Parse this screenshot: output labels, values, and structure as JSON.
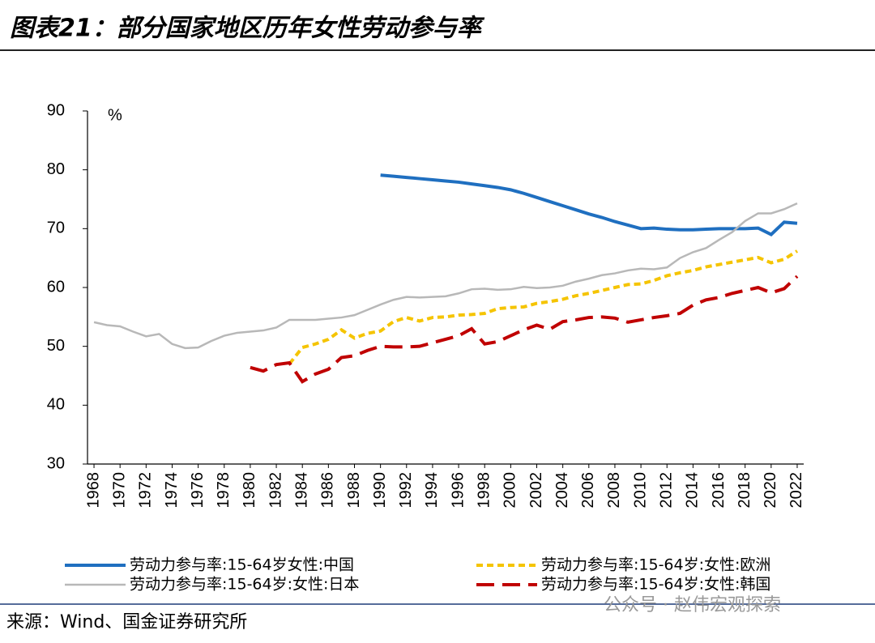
{
  "chart_data": {
    "type": "line",
    "title": "图表21：部分国家地区历年女性劳动参与率",
    "y_unit": "%",
    "source": "来源：Wind、国金证券研究所",
    "watermark": "公众号 · 赵伟宏观探索",
    "x": [
      1968,
      1969,
      1970,
      1971,
      1972,
      1973,
      1974,
      1975,
      1976,
      1977,
      1978,
      1979,
      1980,
      1981,
      1982,
      1983,
      1984,
      1985,
      1986,
      1987,
      1988,
      1989,
      1990,
      1991,
      1992,
      1993,
      1994,
      1995,
      1996,
      1997,
      1998,
      1999,
      2000,
      2001,
      2002,
      2003,
      2004,
      2005,
      2006,
      2007,
      2008,
      2009,
      2010,
      2011,
      2012,
      2013,
      2014,
      2015,
      2016,
      2017,
      2018,
      2019,
      2020,
      2021,
      2022
    ],
    "xlim": [
      1967.5,
      2022.5
    ],
    "xticks": [
      1968,
      1970,
      1972,
      1974,
      1976,
      1978,
      1980,
      1982,
      1984,
      1986,
      1988,
      1990,
      1992,
      1994,
      1996,
      1998,
      2000,
      2002,
      2004,
      2006,
      2008,
      2010,
      2012,
      2014,
      2016,
      2018,
      2020,
      2022
    ],
    "ylim": [
      30,
      90
    ],
    "yticks": [
      30,
      40,
      50,
      60,
      70,
      80,
      90
    ],
    "grid": false,
    "series": [
      {
        "name": "劳动力参与率:15-64岁女性:中国",
        "color": "#1f6fc0",
        "dash": "solid",
        "values": [
          null,
          null,
          null,
          null,
          null,
          null,
          null,
          null,
          null,
          null,
          null,
          null,
          null,
          null,
          null,
          null,
          null,
          null,
          null,
          null,
          null,
          null,
          79.1,
          78.9,
          78.7,
          78.5,
          78.3,
          78.1,
          77.9,
          77.6,
          77.3,
          77.0,
          76.6,
          76.0,
          75.3,
          74.6,
          73.9,
          73.2,
          72.5,
          71.9,
          71.2,
          70.6,
          70.0,
          70.1,
          69.9,
          69.8,
          69.8,
          69.9,
          70.0,
          70.0,
          70.0,
          70.1,
          69.0,
          71.1,
          70.9
        ]
      },
      {
        "name": "劳动力参与率:15-64岁:女性:欧洲",
        "color": "#f5c400",
        "dash": "short",
        "values": [
          null,
          null,
          null,
          null,
          null,
          null,
          null,
          null,
          null,
          null,
          null,
          null,
          null,
          null,
          null,
          47.0,
          49.8,
          50.4,
          51.2,
          52.8,
          51.4,
          52.2,
          52.6,
          54.2,
          54.9,
          54.3,
          54.9,
          55.0,
          55.3,
          55.4,
          55.6,
          56.4,
          56.6,
          56.7,
          57.3,
          57.6,
          58.0,
          58.6,
          59.0,
          59.5,
          60.0,
          60.5,
          60.6,
          61.2,
          62.0,
          62.5,
          62.9,
          63.5,
          63.9,
          64.3,
          64.7,
          65.1,
          64.2,
          64.8,
          66.2
        ]
      },
      {
        "name": "劳动力参与率:15-64岁:女性:日本",
        "color": "#b8b8b8",
        "dash": "solid",
        "values": [
          54.1,
          53.6,
          53.4,
          52.5,
          51.7,
          52.1,
          50.4,
          49.7,
          49.8,
          50.9,
          51.8,
          52.3,
          52.5,
          52.7,
          53.2,
          54.5,
          54.5,
          54.5,
          54.7,
          54.9,
          55.3,
          56.2,
          57.1,
          57.9,
          58.4,
          58.3,
          58.4,
          58.5,
          59.0,
          59.7,
          59.8,
          59.6,
          59.7,
          60.1,
          59.9,
          60.0,
          60.3,
          61.0,
          61.5,
          62.1,
          62.4,
          62.9,
          63.2,
          63.1,
          63.4,
          65.0,
          66.0,
          66.7,
          68.1,
          69.4,
          71.3,
          72.6,
          72.6,
          73.3,
          74.3
        ]
      },
      {
        "name": "劳动力参与率:15-64岁:女性:韩国",
        "color": "#c00000",
        "dash": "long",
        "values": [
          null,
          null,
          null,
          null,
          null,
          null,
          null,
          null,
          null,
          null,
          null,
          null,
          46.4,
          45.8,
          46.9,
          47.2,
          44.0,
          45.3,
          46.1,
          48.1,
          48.4,
          49.3,
          50.0,
          49.9,
          49.9,
          50.0,
          50.6,
          51.2,
          51.8,
          53.0,
          50.4,
          50.8,
          51.8,
          52.8,
          53.6,
          52.9,
          54.2,
          54.5,
          54.9,
          55.0,
          54.8,
          54.1,
          54.5,
          54.9,
          55.2,
          55.6,
          57.0,
          57.9,
          58.3,
          59.0,
          59.5,
          60.0,
          59.1,
          59.8,
          61.9
        ]
      }
    ]
  }
}
